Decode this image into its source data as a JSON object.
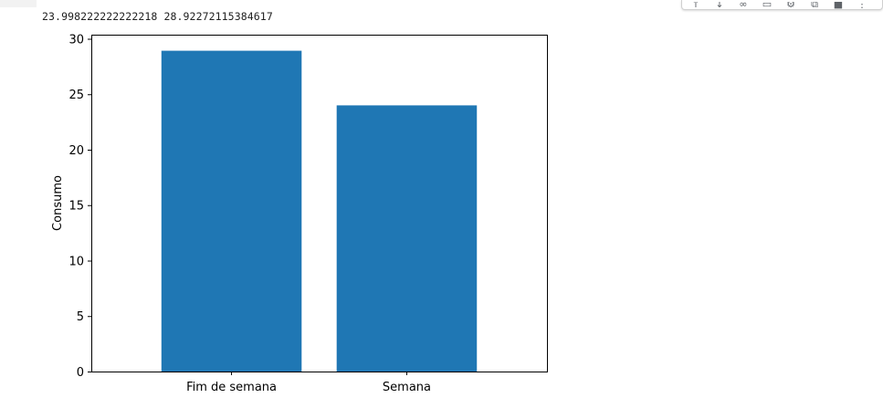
{
  "output": {
    "text": "23.998222222222218 28.92272115384617"
  },
  "toolbar": {
    "icons": [
      "arrow-up-icon",
      "arrow-down-icon",
      "link-icon",
      "comment-icon",
      "gear-icon",
      "external-link-icon",
      "delete-icon",
      "more-icon"
    ]
  },
  "colors": {
    "bar": "#1f77b4"
  },
  "chart_data": {
    "type": "bar",
    "categories": [
      "Fim de semana",
      "Semana"
    ],
    "values": [
      28.92272115384617,
      23.998222222222218
    ],
    "title": "",
    "xlabel": "",
    "ylabel": "Consumo",
    "ylim": [
      0,
      30.37
    ],
    "yticks": [
      0,
      5,
      10,
      15,
      20,
      25,
      30
    ],
    "grid": false
  }
}
